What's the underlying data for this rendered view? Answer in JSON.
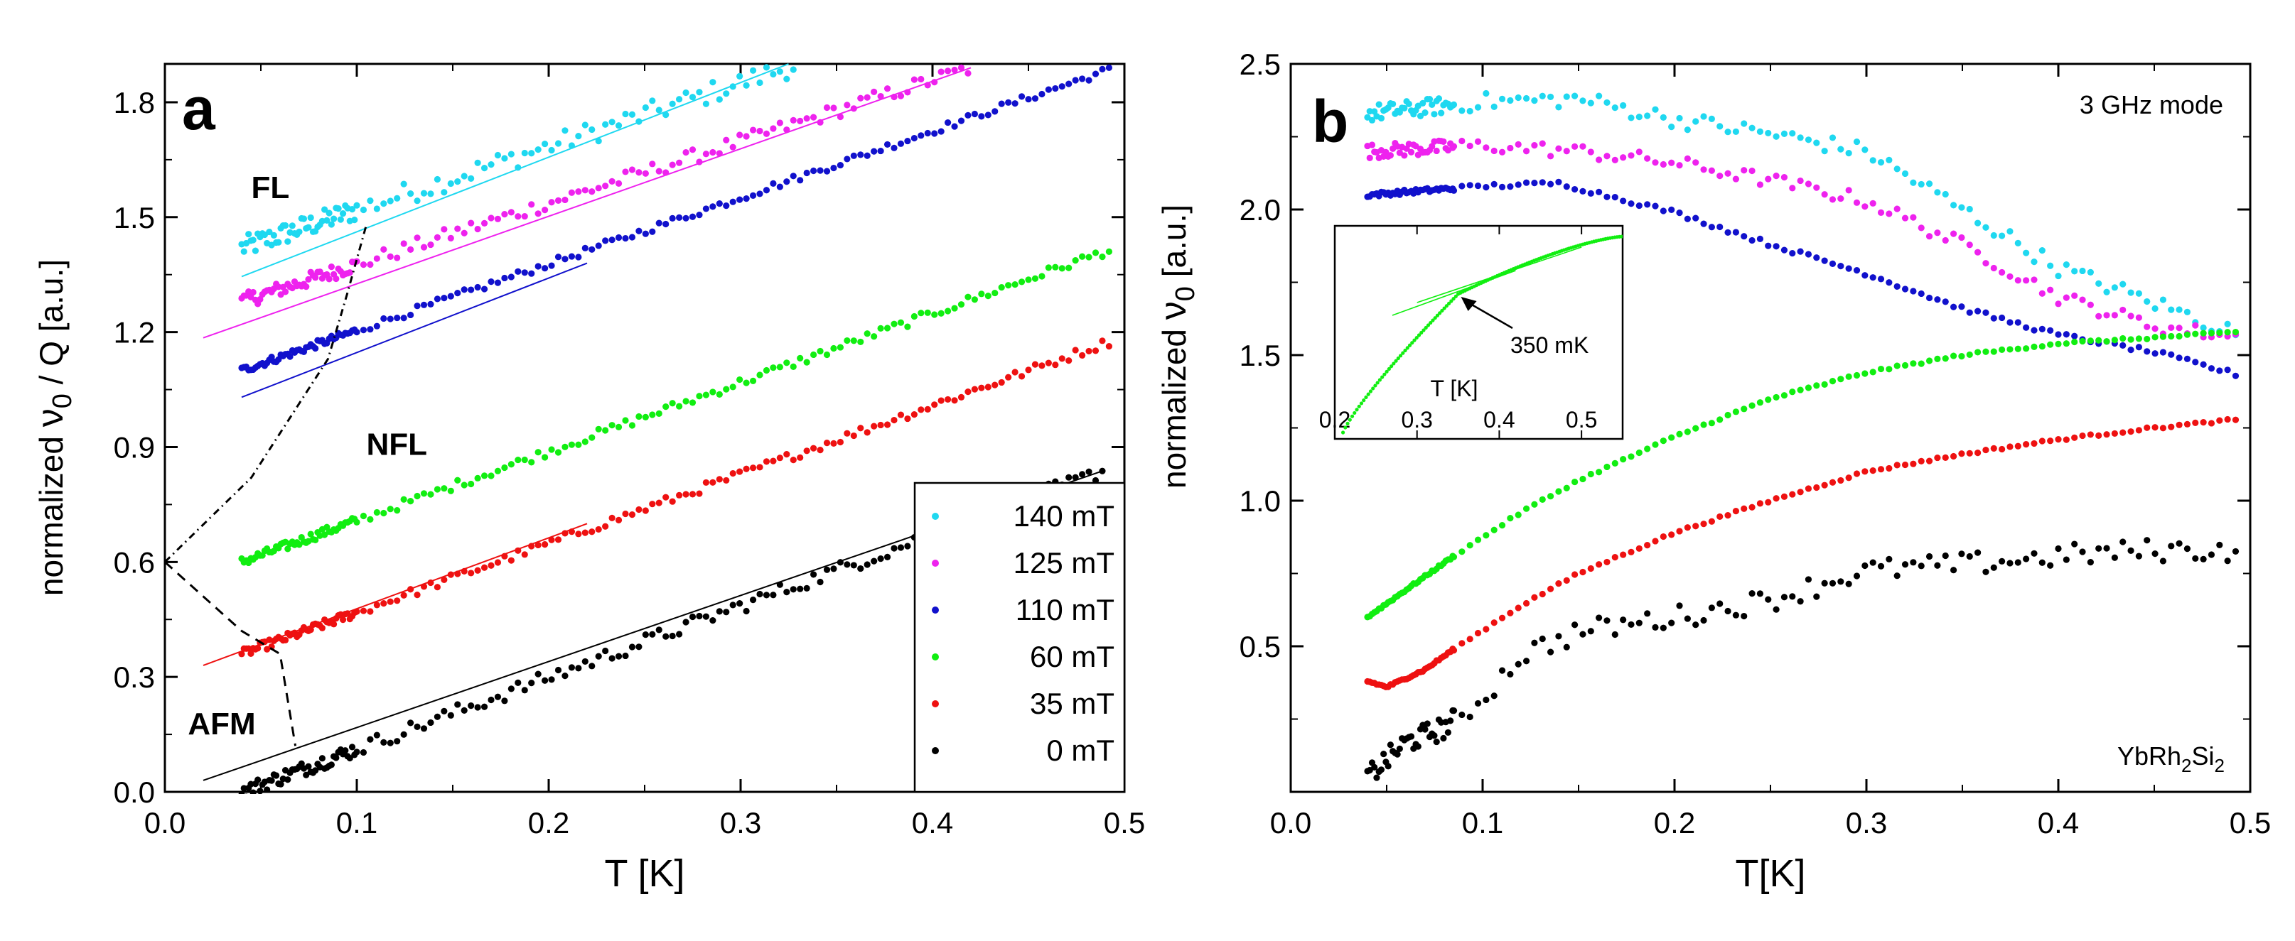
{
  "chart_data": [
    {
      "panel_letter": "a",
      "type": "scatter",
      "xlabel": "T [K]",
      "ylabel_prefix": "normalized ",
      "ylabel_symbol": "ν",
      "ylabel_sub": "0",
      "ylabel_suffix": " / Q  [a.u.]",
      "xlim": [
        0.0,
        0.5
      ],
      "ylim": [
        0.0,
        1.9
      ],
      "xticks": [
        0.0,
        0.1,
        0.2,
        0.3,
        0.4,
        0.5
      ],
      "xtick_labels": [
        "0.0",
        "0.1",
        "0.2",
        "0.3",
        "0.4",
        "0.5"
      ],
      "yticks": [
        0.0,
        0.3,
        0.6,
        0.9,
        1.2,
        1.5,
        1.8
      ],
      "ytick_labels": [
        "0.0",
        "0.3",
        "0.6",
        "0.9",
        "1.2",
        "1.5",
        "1.8"
      ],
      "legend_position": "bottom-right",
      "region_labels": [
        {
          "text": "FL",
          "x": 0.045,
          "y": 1.55
        },
        {
          "text": "NFL",
          "x": 0.105,
          "y": 0.88
        },
        {
          "text": "AFM",
          "x": 0.012,
          "y": 0.15
        }
      ],
      "series": [
        {
          "name": "140 mT",
          "color": "#1fd8f0",
          "x_start": 0.04,
          "x_end": 0.33,
          "y_start": 1.42,
          "y_end": 1.9,
          "noise": 0.03,
          "fit": {
            "x": [
              0.04,
              0.325
            ],
            "y": [
              1.345,
              1.9
            ]
          }
        },
        {
          "name": "125 mT",
          "color": "#ee22ee",
          "x_start": 0.04,
          "x_end": 0.42,
          "y_start": 1.28,
          "y_end": 1.89,
          "noise": 0.02,
          "fit": {
            "x": [
              0.02,
              0.42
            ],
            "y": [
              1.185,
              1.89
            ]
          }
        },
        {
          "name": "110 mT",
          "color": "#1111cc",
          "x_start": 0.04,
          "x_end": 0.495,
          "y_start": 1.1,
          "y_end": 1.89,
          "noise": 0.01,
          "fit": {
            "x": [
              0.04,
              0.22
            ],
            "y": [
              1.03,
              1.38
            ]
          }
        },
        {
          "name": "60 mT",
          "color": "#11ee11",
          "x_start": 0.04,
          "x_end": 0.495,
          "y_start": 0.6,
          "y_end": 1.42,
          "noise": 0.012,
          "fit": null
        },
        {
          "name": "35 mT",
          "color": "#ee1111",
          "x_start": 0.04,
          "x_end": 0.495,
          "y_start": 0.36,
          "y_end": 1.18,
          "noise": 0.012,
          "fit": {
            "x": [
              0.02,
              0.22
            ],
            "y": [
              0.33,
              0.7
            ]
          }
        },
        {
          "name": "0 mT",
          "color": "#000000",
          "x_start": 0.04,
          "x_end": 0.49,
          "y_start": 0.0,
          "y_end": 0.84,
          "noise": 0.02,
          "fit": {
            "x": [
              0.02,
              0.49
            ],
            "y": [
              0.03,
              0.84
            ]
          }
        }
      ],
      "phase_lines": [
        {
          "style": "dot-dash",
          "x": [
            0.0,
            0.045,
            0.085,
            0.095,
            0.105
          ],
          "y": [
            0.6,
            0.82,
            1.13,
            1.3,
            1.48
          ]
        },
        {
          "style": "dash",
          "x": [
            0.0,
            0.04,
            0.06,
            0.068
          ],
          "y": [
            0.6,
            0.42,
            0.36,
            0.12
          ]
        }
      ]
    },
    {
      "panel_letter": "b",
      "type": "scatter",
      "xlabel": "T[K]",
      "ylabel_prefix": "normalized ",
      "ylabel_symbol": "ν",
      "ylabel_sub": "0",
      "ylabel_suffix": " [a.u.]",
      "xlim": [
        0.0,
        0.5
      ],
      "ylim": [
        0.0,
        2.5
      ],
      "xticks": [
        0.0,
        0.1,
        0.2,
        0.3,
        0.4,
        0.5
      ],
      "xtick_labels": [
        "0.0",
        "0.1",
        "0.2",
        "0.3",
        "0.4",
        "0.5"
      ],
      "yticks": [
        0.5,
        1.0,
        1.5,
        2.0,
        2.5
      ],
      "ytick_labels": [
        "0.5",
        "1.0",
        "1.5",
        "2.0",
        "2.5"
      ],
      "annotation_mode": "3 GHz mode",
      "sample": {
        "base": "YbRh",
        "sub1": "2",
        "mid": "Si",
        "sub2": "2"
      },
      "series": [
        {
          "name": "140 mT",
          "color": "#1fd8f0",
          "anchors": [
            [
              0.04,
              2.33
            ],
            [
              0.1,
              2.37
            ],
            [
              0.15,
              2.38
            ],
            [
              0.2,
              2.31
            ],
            [
              0.25,
              2.26
            ],
            [
              0.3,
              2.2
            ],
            [
              0.35,
              2.0
            ],
            [
              0.4,
              1.8
            ],
            [
              0.45,
              1.68
            ],
            [
              0.495,
              1.57
            ]
          ],
          "noise": 0.03
        },
        {
          "name": "125 mT",
          "color": "#ee22ee",
          "anchors": [
            [
              0.04,
              2.2
            ],
            [
              0.1,
              2.22
            ],
            [
              0.15,
              2.2
            ],
            [
              0.2,
              2.16
            ],
            [
              0.25,
              2.1
            ],
            [
              0.3,
              2.03
            ],
            [
              0.35,
              1.88
            ],
            [
              0.4,
              1.7
            ],
            [
              0.45,
              1.6
            ],
            [
              0.495,
              1.56
            ]
          ],
          "noise": 0.025
        },
        {
          "name": "110 mT",
          "color": "#1111cc",
          "anchors": [
            [
              0.04,
              2.05
            ],
            [
              0.1,
              2.08
            ],
            [
              0.14,
              2.09
            ],
            [
              0.2,
              1.99
            ],
            [
              0.25,
              1.88
            ],
            [
              0.3,
              1.78
            ],
            [
              0.35,
              1.66
            ],
            [
              0.4,
              1.57
            ],
            [
              0.45,
              1.51
            ],
            [
              0.495,
              1.43
            ]
          ],
          "noise": 0.008
        },
        {
          "name": "60 mT",
          "color": "#11ee11",
          "anchors": [
            [
              0.04,
              0.6
            ],
            [
              0.085,
              0.81
            ],
            [
              0.12,
              0.96
            ],
            [
              0.15,
              1.07
            ],
            [
              0.2,
              1.22
            ],
            [
              0.25,
              1.35
            ],
            [
              0.3,
              1.44
            ],
            [
              0.35,
              1.5
            ],
            [
              0.4,
              1.54
            ],
            [
              0.45,
              1.56
            ],
            [
              0.495,
              1.58
            ]
          ],
          "noise": 0.004
        },
        {
          "name": "35 mT",
          "color": "#ee1111",
          "anchors": [
            [
              0.04,
              0.38
            ],
            [
              0.05,
              0.36
            ],
            [
              0.07,
              0.42
            ],
            [
              0.085,
              0.49
            ],
            [
              0.12,
              0.64
            ],
            [
              0.15,
              0.75
            ],
            [
              0.2,
              0.89
            ],
            [
              0.25,
              1.0
            ],
            [
              0.3,
              1.1
            ],
            [
              0.35,
              1.16
            ],
            [
              0.4,
              1.21
            ],
            [
              0.45,
              1.25
            ],
            [
              0.495,
              1.28
            ]
          ],
          "noise": 0.004
        },
        {
          "name": "0 mT",
          "color": "#000000",
          "anchors": [
            [
              0.04,
              0.05
            ],
            [
              0.06,
              0.17
            ],
            [
              0.08,
              0.22
            ],
            [
              0.1,
              0.32
            ],
            [
              0.12,
              0.47
            ],
            [
              0.15,
              0.55
            ],
            [
              0.2,
              0.6
            ],
            [
              0.25,
              0.66
            ],
            [
              0.3,
              0.76
            ],
            [
              0.35,
              0.78
            ],
            [
              0.4,
              0.81
            ],
            [
              0.45,
              0.83
            ],
            [
              0.495,
              0.83
            ]
          ],
          "noise": 0.04
        }
      ],
      "inset": {
        "xlabel": "T [K]",
        "xlim": [
          0.2,
          0.55
        ],
        "ylim": [
          0.0,
          1.0
        ],
        "xticks": [
          0.2,
          0.3,
          0.4,
          0.5
        ],
        "xtick_labels": [
          "0.2",
          "0.3",
          "0.4",
          "0.5"
        ],
        "annotation": "350 mK",
        "marker_x": 0.35,
        "series": {
          "color": "#11ee11",
          "x_start": 0.21,
          "x_end": 0.55,
          "knee_x": 0.35,
          "knee_y": 0.68,
          "y_start": 0.03,
          "y_end": 0.95
        },
        "fits": [
          {
            "x": [
              0.27,
              0.42
            ],
            "y": [
              0.58,
              0.79
            ]
          },
          {
            "x": [
              0.3,
              0.5
            ],
            "y": [
              0.64,
              0.9
            ]
          }
        ]
      }
    }
  ]
}
